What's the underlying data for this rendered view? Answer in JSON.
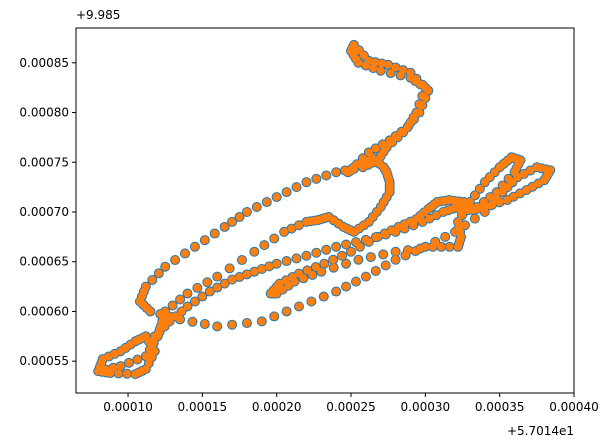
{
  "chart_data": {
    "type": "scatter",
    "x_offset_label": "+5.7014e1",
    "y_offset_label": "+9.985",
    "xlim": [
      6.5e-05,
      0.0004
    ],
    "ylim": [
      0.000518,
      0.000885
    ],
    "xticks": [
      {
        "value": 0.0001,
        "label": "0.00010"
      },
      {
        "value": 0.00015,
        "label": "0.00015"
      },
      {
        "value": 0.0002,
        "label": "0.00020"
      },
      {
        "value": 0.00025,
        "label": "0.00025"
      },
      {
        "value": 0.0003,
        "label": "0.00030"
      },
      {
        "value": 0.00035,
        "label": "0.00035"
      },
      {
        "value": 0.0004,
        "label": "0.00040"
      }
    ],
    "yticks": [
      {
        "value": 0.00055,
        "label": "0.00055"
      },
      {
        "value": 0.0006,
        "label": "0.00060"
      },
      {
        "value": 0.00065,
        "label": "0.00065"
      },
      {
        "value": 0.0007,
        "label": "0.00070"
      },
      {
        "value": 0.00075,
        "label": "0.00075"
      },
      {
        "value": 0.0008,
        "label": "0.00080"
      },
      {
        "value": 0.00085,
        "label": "0.00085"
      }
    ],
    "grid": false,
    "series": [
      {
        "color": "#1f77b4",
        "markersize": 5,
        "x": [
          8e-05,
          8.8e-05,
          0.000105,
          0.000112,
          0.000118,
          0.000112,
          0.000105,
          9.5e-05,
          8.3e-05,
          8e-05,
          9.5e-05,
          0.000112,
          0.00012,
          0.000122,
          0.000125,
          0.00014,
          0.00016,
          0.000185,
          0.000205,
          0.00022,
          0.000228,
          0.000235,
          0.000245,
          0.000252,
          0.000262,
          0.00027,
          0.000276,
          0.000276,
          0.000274,
          0.000272,
          0.000264,
          0.000252,
          0.000248,
          0.00025,
          0.000262,
          0.000276,
          0.000288,
          0.000294,
          0.0003,
          0.00029,
          0.00027,
          0.000255,
          0.00025,
          0.000252,
          0.000262,
          0.000275,
          0.00029,
          0.000302,
          0.000296,
          0.000285,
          0.000274,
          0.000268,
          0.000258,
          0.00024,
          0.00022,
          0.0002,
          0.00018,
          0.000165,
          0.000145,
          0.000125,
          0.000112,
          0.000108,
          0.000115,
          0.000135,
          0.00016,
          0.00019,
          0.000215,
          0.00024,
          0.00026,
          0.00028,
          0.0003,
          0.00032,
          0.00034,
          0.000352,
          0.000362,
          0.000375,
          0.000384,
          0.00038,
          0.000368,
          0.000355,
          0.00034,
          0.000332,
          0.000326,
          0.000316,
          0.000308,
          0.000302,
          0.000294,
          0.000282,
          0.000268,
          0.00025,
          0.000232,
          0.000215,
          0.000202,
          0.000196,
          0.0002,
          0.000212,
          0.00023,
          0.000255,
          0.00028,
          0.000305,
          0.000322,
          0.000324,
          0.000322,
          0.00033,
          0.00034,
          0.00035,
          0.000358,
          0.000364,
          0.00036,
          0.000348,
          0.000335,
          0.000325,
          0.000322,
          0.000312,
          0.000298,
          0.00028,
          0.00026,
          0.00024,
          0.00022,
          0.0002,
          0.000185,
          0.00017,
          0.000155,
          0.00014,
          0.000128,
          0.000118
        ],
        "y": [
          0.00054,
          0.000538,
          0.000537,
          0.000542,
          0.00056,
          0.000575,
          0.00057,
          0.00056,
          0.000552,
          0.00054,
          0.000545,
          0.000555,
          0.000575,
          0.000585,
          0.0006,
          0.000618,
          0.000635,
          0.00066,
          0.00068,
          0.00069,
          0.000692,
          0.000695,
          0.000685,
          0.00068,
          0.00069,
          0.000705,
          0.00072,
          0.00073,
          0.00074,
          0.000745,
          0.000755,
          0.000745,
          0.00074,
          0.000742,
          0.00076,
          0.000772,
          0.000785,
          0.0008,
          0.000825,
          0.000835,
          0.000842,
          0.00085,
          0.000862,
          0.000868,
          0.000852,
          0.000848,
          0.00084,
          0.000822,
          0.0008,
          0.00078,
          0.000765,
          0.000752,
          0.000745,
          0.00074,
          0.00073,
          0.000715,
          0.0007,
          0.000685,
          0.000665,
          0.000645,
          0.000625,
          0.00061,
          0.0006,
          0.000592,
          0.000585,
          0.00059,
          0.000605,
          0.00062,
          0.000635,
          0.000652,
          0.000665,
          0.00068,
          0.0007,
          0.00072,
          0.000735,
          0.000745,
          0.000742,
          0.000732,
          0.000722,
          0.000712,
          0.000705,
          0.000702,
          0.00071,
          0.000712,
          0.00071,
          0.000703,
          0.000693,
          0.000685,
          0.000675,
          0.00066,
          0.000648,
          0.000638,
          0.000628,
          0.000618,
          0.000618,
          0.00063,
          0.00064,
          0.000652,
          0.00066,
          0.000665,
          0.000665,
          0.000675,
          0.00069,
          0.00071,
          0.00073,
          0.000745,
          0.000755,
          0.000752,
          0.00074,
          0.00072,
          0.000705,
          0.0007,
          0.000705,
          0.0007,
          0.00069,
          0.00068,
          0.000672,
          0.000665,
          0.000656,
          0.000648,
          0.00064,
          0.000632,
          0.00062,
          0.000605,
          0.00059,
          0.000575
        ]
      },
      {
        "color": "#ff7f0e",
        "markersize": 4,
        "x": [
          8e-05,
          8.8e-05,
          0.000105,
          0.000112,
          0.000118,
          0.000112,
          0.000105,
          9.5e-05,
          8.3e-05,
          8e-05,
          9.5e-05,
          0.000112,
          0.00012,
          0.000122,
          0.000125,
          0.00014,
          0.00016,
          0.000185,
          0.000205,
          0.00022,
          0.000228,
          0.000235,
          0.000245,
          0.000252,
          0.000262,
          0.00027,
          0.000276,
          0.000276,
          0.000274,
          0.000272,
          0.000264,
          0.000252,
          0.000248,
          0.00025,
          0.000262,
          0.000276,
          0.000288,
          0.000294,
          0.0003,
          0.00029,
          0.00027,
          0.000255,
          0.00025,
          0.000252,
          0.000262,
          0.000275,
          0.00029,
          0.000302,
          0.000296,
          0.000285,
          0.000274,
          0.000268,
          0.000258,
          0.00024,
          0.00022,
          0.0002,
          0.00018,
          0.000165,
          0.000145,
          0.000125,
          0.000112,
          0.000108,
          0.000115,
          0.000135,
          0.00016,
          0.00019,
          0.000215,
          0.00024,
          0.00026,
          0.00028,
          0.0003,
          0.00032,
          0.00034,
          0.000352,
          0.000362,
          0.000375,
          0.000384,
          0.00038,
          0.000368,
          0.000355,
          0.00034,
          0.000332,
          0.000326,
          0.000316,
          0.000308,
          0.000302,
          0.000294,
          0.000282,
          0.000268,
          0.00025,
          0.000232,
          0.000215,
          0.000202,
          0.000196,
          0.0002,
          0.000212,
          0.00023,
          0.000255,
          0.00028,
          0.000305,
          0.000322,
          0.000324,
          0.000322,
          0.00033,
          0.00034,
          0.00035,
          0.000358,
          0.000364,
          0.00036,
          0.000348,
          0.000335,
          0.000325,
          0.000322,
          0.000312,
          0.000298,
          0.00028,
          0.00026,
          0.00024,
          0.00022,
          0.0002,
          0.000185,
          0.00017,
          0.000155,
          0.00014,
          0.000128,
          0.000118
        ],
        "y": [
          0.00054,
          0.000538,
          0.000537,
          0.000542,
          0.00056,
          0.000575,
          0.00057,
          0.00056,
          0.000552,
          0.00054,
          0.000545,
          0.000555,
          0.000575,
          0.000585,
          0.0006,
          0.000618,
          0.000635,
          0.00066,
          0.00068,
          0.00069,
          0.000692,
          0.000695,
          0.000685,
          0.00068,
          0.00069,
          0.000705,
          0.00072,
          0.00073,
          0.00074,
          0.000745,
          0.000755,
          0.000745,
          0.00074,
          0.000742,
          0.00076,
          0.000772,
          0.000785,
          0.0008,
          0.000825,
          0.000835,
          0.000842,
          0.00085,
          0.000862,
          0.000868,
          0.000852,
          0.000848,
          0.00084,
          0.000822,
          0.0008,
          0.00078,
          0.000765,
          0.000752,
          0.000745,
          0.00074,
          0.00073,
          0.000715,
          0.0007,
          0.000685,
          0.000665,
          0.000645,
          0.000625,
          0.00061,
          0.0006,
          0.000592,
          0.000585,
          0.00059,
          0.000605,
          0.00062,
          0.000635,
          0.000652,
          0.000665,
          0.00068,
          0.0007,
          0.00072,
          0.000735,
          0.000745,
          0.000742,
          0.000732,
          0.000722,
          0.000712,
          0.000705,
          0.000702,
          0.00071,
          0.000712,
          0.00071,
          0.000703,
          0.000693,
          0.000685,
          0.000675,
          0.00066,
          0.000648,
          0.000638,
          0.000628,
          0.000618,
          0.000618,
          0.00063,
          0.00064,
          0.000652,
          0.00066,
          0.000665,
          0.000665,
          0.000675,
          0.00069,
          0.00071,
          0.00073,
          0.000745,
          0.000755,
          0.000752,
          0.00074,
          0.00072,
          0.000705,
          0.0007,
          0.000705,
          0.0007,
          0.00069,
          0.00068,
          0.000672,
          0.000665,
          0.000656,
          0.000648,
          0.00064,
          0.000632,
          0.00062,
          0.000605,
          0.00059,
          0.000575
        ]
      }
    ]
  }
}
